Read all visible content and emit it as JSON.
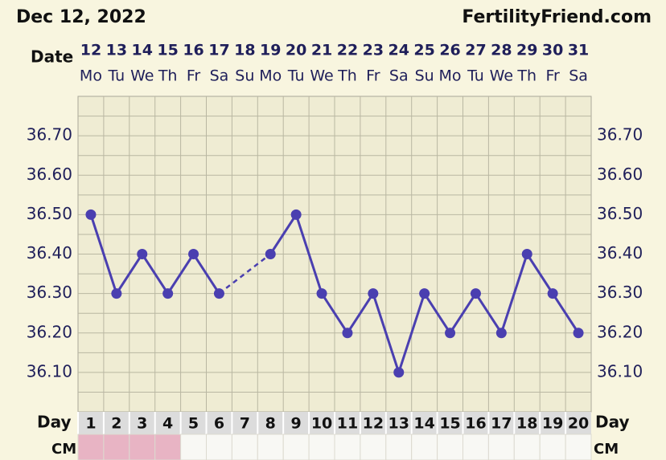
{
  "chart_data": {
    "type": "line",
    "title": "Dec 12, 2022",
    "site": "FertilityFriend.com",
    "date_label": "Date",
    "day_label": "Day",
    "cm_label": "CM",
    "categories": [
      "12",
      "13",
      "14",
      "15",
      "16",
      "17",
      "18",
      "19",
      "20",
      "21",
      "22",
      "23",
      "24",
      "25",
      "26",
      "27",
      "28",
      "29",
      "30",
      "31"
    ],
    "weekdays": [
      "Mo",
      "Tu",
      "We",
      "Th",
      "Fr",
      "Sa",
      "Su",
      "Mo",
      "Tu",
      "We",
      "Th",
      "Fr",
      "Sa",
      "Su",
      "Mo",
      "Tu",
      "We",
      "Th",
      "Fr",
      "Sa"
    ],
    "days": [
      1,
      2,
      3,
      4,
      5,
      6,
      7,
      8,
      9,
      10,
      11,
      12,
      13,
      14,
      15,
      16,
      17,
      18,
      19,
      20
    ],
    "cm_colors": [
      "#e8b4c4",
      "#e8b4c4",
      "#e8b4c4",
      "#e8b4c4",
      "#f8f8f4",
      "#f8f8f4",
      "#f8f8f4",
      "#f8f8f4",
      "#f8f8f4",
      "#f8f8f4",
      "#f8f8f4",
      "#f8f8f4",
      "#f8f8f4",
      "#f8f8f4",
      "#f8f8f4",
      "#f8f8f4",
      "#f8f8f4",
      "#f8f8f4",
      "#f8f8f4",
      "#f8f8f4"
    ],
    "series": [
      {
        "color": "#4a3fb0",
        "values": [
          36.5,
          36.3,
          36.4,
          36.3,
          36.4,
          36.3,
          null,
          36.4,
          36.5,
          36.3,
          36.2,
          36.3,
          36.1,
          36.3,
          36.2,
          36.3,
          36.2,
          36.4,
          36.3,
          36.2
        ]
      }
    ],
    "ylim": [
      36.0,
      36.8
    ],
    "yticks": [
      {
        "value": 36.1,
        "label": "36.10"
      },
      {
        "value": 36.2,
        "label": "36.20"
      },
      {
        "value": 36.3,
        "label": "36.30"
      },
      {
        "value": 36.4,
        "label": "36.40"
      },
      {
        "value": 36.5,
        "label": "36.50"
      },
      {
        "value": 36.6,
        "label": "36.60"
      },
      {
        "value": 36.7,
        "label": "36.70"
      }
    ],
    "ygrid": [
      36.05,
      36.1,
      36.15,
      36.2,
      36.25,
      36.3,
      36.35,
      36.4,
      36.45,
      36.5,
      36.55,
      36.6,
      36.65,
      36.7,
      36.75
    ]
  }
}
